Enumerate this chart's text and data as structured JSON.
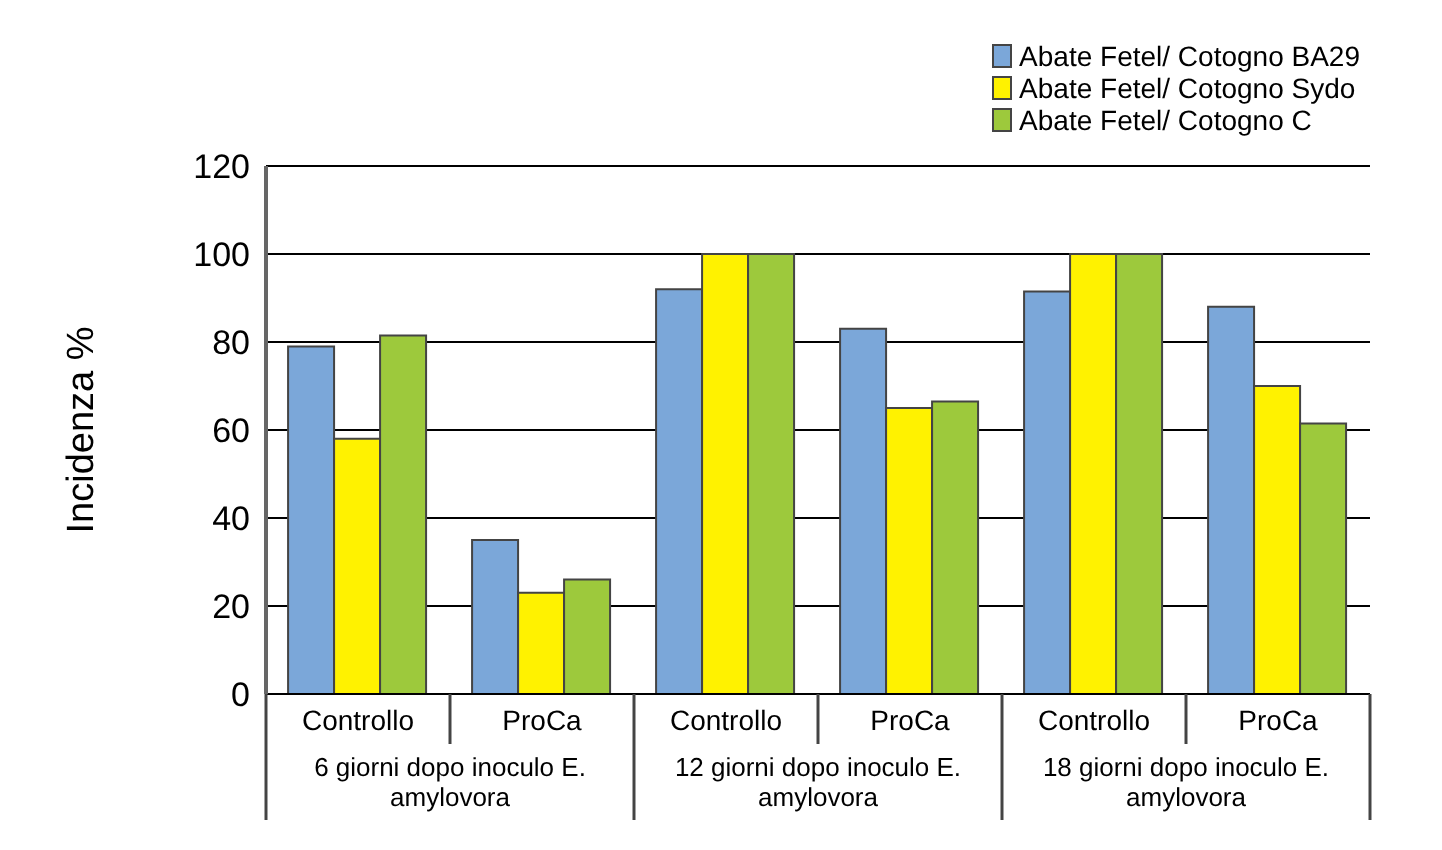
{
  "chart_data": {
    "type": "bar",
    "ylabel": "Incidenza %",
    "categories": [
      "Controllo",
      "ProCa",
      "Controllo",
      "ProCa",
      "Controllo",
      "ProCa"
    ],
    "series": [
      {
        "name": "Abate Fetel/ Cotogno BA29",
        "color": "#7ba7d9",
        "values": [
          79,
          35,
          92,
          83,
          91.5,
          88
        ]
      },
      {
        "name": "Abate Fetel/ Cotogno Sydo",
        "color": "#fff200",
        "values": [
          58,
          23,
          100,
          65,
          100,
          70
        ]
      },
      {
        "name": "Abate Fetel/ Cotogno C",
        "color": "#9dc93c",
        "values": [
          81.5,
          26,
          100,
          66.5,
          100,
          61.5
        ]
      }
    ],
    "ylim": [
      0,
      120
    ],
    "yticks": [
      0,
      20,
      40,
      60,
      80,
      100,
      120
    ],
    "grid": "y",
    "legend": "top right",
    "annotations": [
      "6 giorni dopo inoculo E. amylovora",
      "12 giorni dopo inoculo E. amylovora",
      "18 giorni dopo inoculo E. amylovora"
    ]
  }
}
